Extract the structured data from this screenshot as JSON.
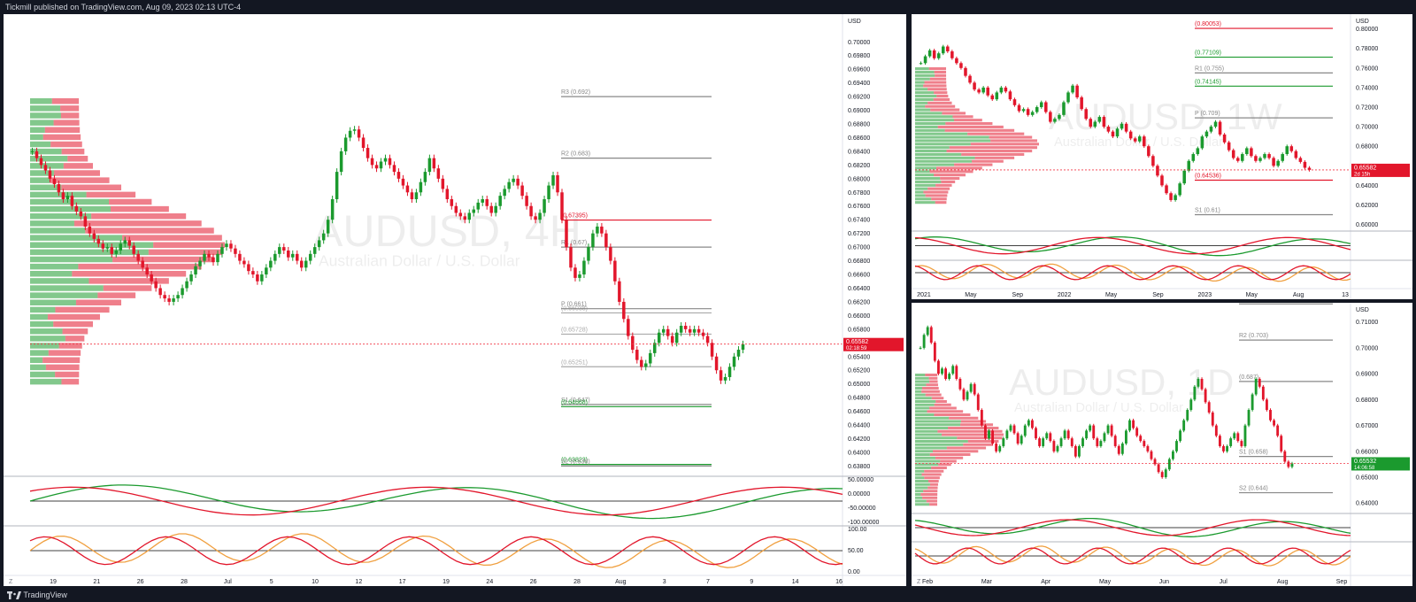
{
  "header": {
    "publisher_text": "Tickmill published on TradingView.com, Aug 09, 2023 02:13 UTC-4"
  },
  "footer": {
    "brand": "TradingView"
  },
  "colors": {
    "bull": "#1b9a2e",
    "bear": "#e2162b",
    "accent_red": "#f23645",
    "accent_green": "#089981",
    "purple": "#b05cf5",
    "orange": "#f0a040"
  },
  "chart_data": [
    {
      "id": "main-4h",
      "type": "candlestick",
      "watermark": "AUDUSD, 4H",
      "watermark_sub": "Australian Dollar / U.S. Dollar",
      "currency": "USD",
      "x_ticks": [
        "19",
        "21",
        "26",
        "28",
        "Jul",
        "5",
        "10",
        "12",
        "17",
        "19",
        "24",
        "26",
        "28",
        "Aug",
        "3",
        "7",
        "9",
        "14",
        "16"
      ],
      "y_ticks": [
        "0.70000",
        "0.69800",
        "0.69600",
        "0.69400",
        "0.69200",
        "0.69000",
        "0.68800",
        "0.68600",
        "0.68400",
        "0.68200",
        "0.68000",
        "0.67800",
        "0.67600",
        "0.67400",
        "0.67200",
        "0.67000",
        "0.66800",
        "0.66600",
        "0.66400",
        "0.66200",
        "0.66000",
        "0.65800",
        "0.65600",
        "0.65400",
        "0.65200",
        "0.65000",
        "0.64800",
        "0.64600",
        "0.64400",
        "0.64200",
        "0.64000",
        "0.63800"
      ],
      "ylim": [
        0.6365,
        0.7012
      ],
      "close_series": [
        0.684,
        0.683,
        0.682,
        0.6812,
        0.68,
        0.6792,
        0.678,
        0.677,
        0.6775,
        0.676,
        0.6752,
        0.6745,
        0.673,
        0.672,
        0.6712,
        0.6705,
        0.6698,
        0.67,
        0.669,
        0.6695,
        0.6705,
        0.671,
        0.6702,
        0.669,
        0.668,
        0.667,
        0.666,
        0.665,
        0.664,
        0.663,
        0.6625,
        0.662,
        0.6625,
        0.663,
        0.664,
        0.665,
        0.666,
        0.6672,
        0.668,
        0.669,
        0.6685,
        0.6678,
        0.669,
        0.67,
        0.6705,
        0.6698,
        0.669,
        0.668,
        0.6675,
        0.6665,
        0.666,
        0.665,
        0.666,
        0.667,
        0.668,
        0.669,
        0.67,
        0.6695,
        0.6685,
        0.669,
        0.668,
        0.667,
        0.668,
        0.669,
        0.67,
        0.671,
        0.672,
        0.674,
        0.677,
        0.681,
        0.684,
        0.686,
        0.687,
        0.6872,
        0.686,
        0.6845,
        0.683,
        0.682,
        0.6815,
        0.6825,
        0.683,
        0.682,
        0.681,
        0.68,
        0.679,
        0.678,
        0.677,
        0.678,
        0.6795,
        0.681,
        0.683,
        0.6815,
        0.68,
        0.6785,
        0.677,
        0.676,
        0.675,
        0.6745,
        0.674,
        0.675,
        0.6755,
        0.6765,
        0.677,
        0.676,
        0.675,
        0.676,
        0.6775,
        0.6785,
        0.6795,
        0.68,
        0.679,
        0.6775,
        0.676,
        0.6745,
        0.674,
        0.675,
        0.677,
        0.679,
        0.6805,
        0.678,
        0.674,
        0.67,
        0.667,
        0.6655,
        0.666,
        0.668,
        0.67,
        0.672,
        0.673,
        0.672,
        0.67,
        0.668,
        0.665,
        0.662,
        0.6595,
        0.657,
        0.655,
        0.6535,
        0.6525,
        0.653,
        0.6545,
        0.656,
        0.6575,
        0.658,
        0.657,
        0.656,
        0.6575,
        0.6585,
        0.658,
        0.6575,
        0.658,
        0.6575,
        0.657,
        0.656,
        0.654,
        0.652,
        0.6505,
        0.651,
        0.6525,
        0.654,
        0.655,
        0.6558
      ],
      "levels": [
        {
          "label": "R3 (0.692)",
          "value": 0.692,
          "color": "#888888"
        },
        {
          "label": "R2 (0.683)",
          "value": 0.683,
          "color": "#888888"
        },
        {
          "label": "(0.67395)",
          "value": 0.67395,
          "color": "#e2162b"
        },
        {
          "label": "R1 (0.67)",
          "value": 0.67,
          "color": "#888888"
        },
        {
          "label": "(0.66038)",
          "value": 0.66038,
          "color": "#aaaaaa"
        },
        {
          "label": "P (0.661)",
          "value": 0.661,
          "color": "#888888"
        },
        {
          "label": "(0.65728)",
          "value": 0.65728,
          "color": "#aaaaaa"
        },
        {
          "label": "(0.65251)",
          "value": 0.65251,
          "color": "#aaaaaa"
        },
        {
          "label": "S1 (0.647)",
          "value": 0.647,
          "color": "#888888"
        },
        {
          "label": "(0.64668)",
          "value": 0.64668,
          "color": "#1b9a2e"
        },
        {
          "label": "(0.63823)",
          "value": 0.63823,
          "color": "#1b9a2e"
        },
        {
          "label": "S2 (0.638)",
          "value": 0.638,
          "color": "#888888"
        }
      ],
      "last_price": "0.65582",
      "last_countdown": "02:18:59",
      "osc1_ticks": [
        "50.00000",
        "0.00000",
        "-50.00000",
        "-100.00000"
      ],
      "osc2_ticks": [
        "100.00",
        "50.00",
        "0.00"
      ]
    },
    {
      "id": "weekly",
      "type": "candlestick",
      "watermark": "AUDUSD, 1W",
      "watermark_sub": "Australian Dollar / U.S. Dollar",
      "currency": "USD",
      "x_ticks": [
        "2021",
        "May",
        "Sep",
        "2022",
        "May",
        "Sep",
        "2023",
        "May",
        "Aug",
        "13"
      ],
      "y_ticks": [
        "0.80000",
        "0.78000",
        "0.76000",
        "0.74000",
        "0.72000",
        "0.70000",
        "0.68000",
        "0.66000",
        "0.64000",
        "0.62000",
        "0.60000"
      ],
      "ylim": [
        0.596,
        0.806
      ],
      "close_series": [
        0.765,
        0.772,
        0.778,
        0.77,
        0.775,
        0.782,
        0.777,
        0.77,
        0.765,
        0.76,
        0.752,
        0.745,
        0.738,
        0.735,
        0.74,
        0.732,
        0.728,
        0.735,
        0.74,
        0.736,
        0.728,
        0.722,
        0.716,
        0.718,
        0.712,
        0.715,
        0.72,
        0.725,
        0.715,
        0.705,
        0.708,
        0.712,
        0.725,
        0.735,
        0.742,
        0.73,
        0.718,
        0.708,
        0.7,
        0.705,
        0.71,
        0.7,
        0.695,
        0.69,
        0.698,
        0.703,
        0.695,
        0.688,
        0.685,
        0.69,
        0.68,
        0.67,
        0.66,
        0.65,
        0.64,
        0.632,
        0.625,
        0.63,
        0.642,
        0.655,
        0.665,
        0.672,
        0.678,
        0.69,
        0.695,
        0.7,
        0.705,
        0.692,
        0.684,
        0.676,
        0.668,
        0.665,
        0.672,
        0.678,
        0.67,
        0.665,
        0.668,
        0.672,
        0.668,
        0.66,
        0.665,
        0.672,
        0.68,
        0.675,
        0.668,
        0.664,
        0.658,
        0.6558
      ],
      "levels": [
        {
          "label": "(0.80053)",
          "value": 0.80053,
          "color": "#e2162b"
        },
        {
          "label": "(0.77109)",
          "value": 0.77109,
          "color": "#1b9a2e"
        },
        {
          "label": "R1 (0.755)",
          "value": 0.755,
          "color": "#888888"
        },
        {
          "label": "(0.74145)",
          "value": 0.74145,
          "color": "#1b9a2e"
        },
        {
          "label": "P (0.709)",
          "value": 0.709,
          "color": "#888888"
        },
        {
          "label": "(0.64536)",
          "value": 0.64536,
          "color": "#e2162b"
        },
        {
          "label": "S1 (0.61)",
          "value": 0.61,
          "color": "#888888"
        }
      ],
      "last_price": "0.65582",
      "last_countdown": "2d 15h"
    },
    {
      "id": "daily",
      "type": "candlestick",
      "watermark": "AUDUSD, 1D",
      "watermark_sub": "Australian Dollar / U.S. Dollar",
      "currency": "USD",
      "x_ticks": [
        "Feb",
        "Mar",
        "Apr",
        "May",
        "Jun",
        "Jul",
        "Aug",
        "Sep"
      ],
      "y_ticks": [
        "0.71000",
        "0.70000",
        "0.69000",
        "0.68000",
        "0.67000",
        "0.66000",
        "0.65000",
        "0.64000"
      ],
      "ylim": [
        0.637,
        0.714
      ],
      "close_series": [
        0.7,
        0.705,
        0.708,
        0.702,
        0.695,
        0.69,
        0.692,
        0.688,
        0.69,
        0.693,
        0.688,
        0.684,
        0.68,
        0.683,
        0.686,
        0.682,
        0.676,
        0.67,
        0.665,
        0.668,
        0.663,
        0.66,
        0.662,
        0.665,
        0.668,
        0.67,
        0.667,
        0.663,
        0.666,
        0.67,
        0.672,
        0.669,
        0.665,
        0.662,
        0.665,
        0.667,
        0.664,
        0.66,
        0.662,
        0.665,
        0.668,
        0.665,
        0.662,
        0.658,
        0.662,
        0.665,
        0.668,
        0.67,
        0.665,
        0.662,
        0.664,
        0.667,
        0.67,
        0.666,
        0.662,
        0.659,
        0.663,
        0.668,
        0.672,
        0.669,
        0.666,
        0.664,
        0.662,
        0.66,
        0.657,
        0.655,
        0.652,
        0.65,
        0.653,
        0.657,
        0.66,
        0.664,
        0.668,
        0.672,
        0.676,
        0.68,
        0.685,
        0.688,
        0.684,
        0.679,
        0.675,
        0.67,
        0.666,
        0.662,
        0.66,
        0.662,
        0.665,
        0.667,
        0.664,
        0.662,
        0.67,
        0.676,
        0.682,
        0.688,
        0.685,
        0.68,
        0.676,
        0.672,
        0.67,
        0.666,
        0.66,
        0.656,
        0.654,
        0.6553
      ],
      "levels": [
        {
          "label": "R3 (0.717)",
          "value": 0.717,
          "color": "#888888"
        },
        {
          "label": "R2 (0.703)",
          "value": 0.703,
          "color": "#888888"
        },
        {
          "label": "(0.687)",
          "value": 0.687,
          "color": "#888888"
        },
        {
          "label": "S1 (0.658)",
          "value": 0.658,
          "color": "#888888"
        },
        {
          "label": "S2 (0.644)",
          "value": 0.644,
          "color": "#888888"
        }
      ],
      "last_price": "0.65532",
      "last_countdown": "14:06:58"
    }
  ]
}
